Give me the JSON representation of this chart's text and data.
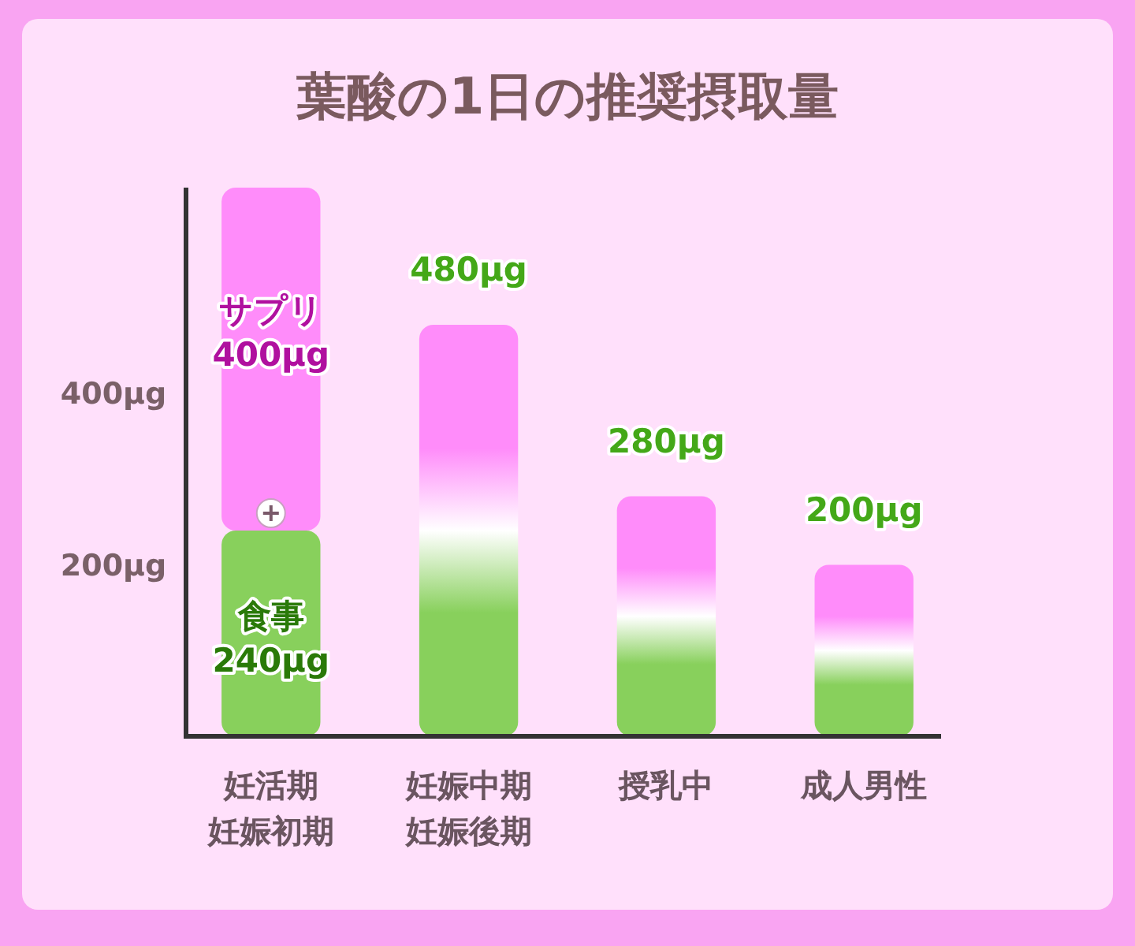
{
  "chart_data": {
    "type": "bar",
    "title": "葉酸の1日の推奨摂取量",
    "stacked": true,
    "categories": [
      "妊活期妊娠初期",
      "妊娠中期妊娠後期",
      "授乳中",
      "成人男性"
    ],
    "series": [
      {
        "name": "食事",
        "color": "#88d05c",
        "values": [
          240,
          null,
          null,
          null
        ],
        "value_labels": [
          "240μg",
          null,
          null,
          null
        ]
      },
      {
        "name": "サプリ",
        "color": "#ff8cfa",
        "values": [
          400,
          null,
          null,
          null
        ],
        "value_labels": [
          "400μg",
          null,
          null,
          null
        ]
      },
      {
        "color": "#ff8cfa",
        "values": [
          null,
          480,
          280,
          200
        ],
        "value_labels": [
          null,
          "480μg",
          "280μg",
          "200μg"
        ]
      }
    ],
    "ylim": [
      0,
      640
    ],
    "yticks": [
      {
        "value": 200,
        "label": "200μg"
      },
      {
        "value": 400,
        "label": "400μg"
      }
    ]
  }
}
